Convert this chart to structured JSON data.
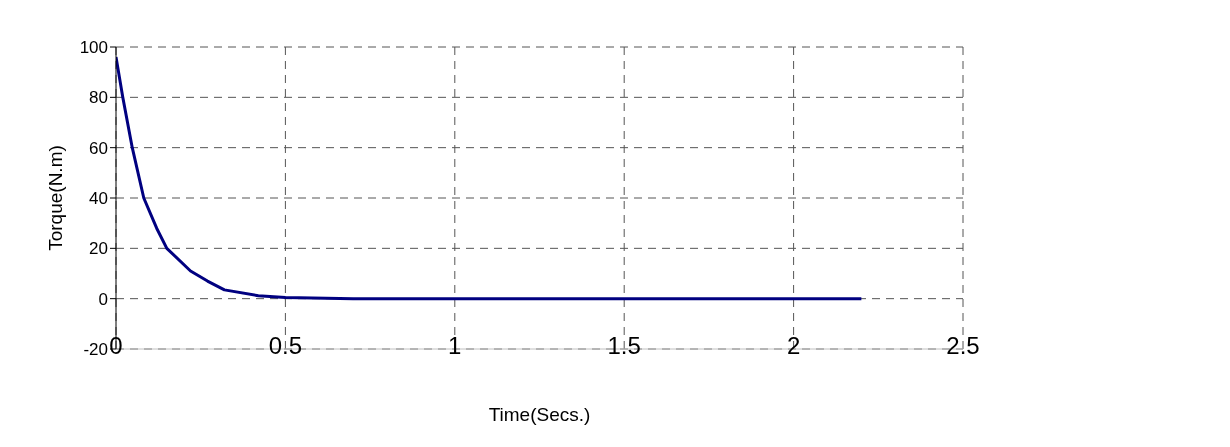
{
  "chart_data": {
    "type": "line",
    "xlabel": "Time(Secs.)",
    "ylabel": "Torque(N.m)",
    "series": [
      {
        "color": "#000080",
        "x": [
          0,
          0.02,
          0.048,
          0.082,
          0.12,
          0.15,
          0.22,
          0.27,
          0.32,
          0.42,
          0.5,
          0.7,
          1,
          1.5,
          2,
          2.2
        ],
        "values": [
          96,
          80,
          60,
          40,
          28,
          20,
          11,
          7,
          3.5,
          1.2,
          0.5,
          0,
          0,
          0,
          0,
          0
        ]
      }
    ],
    "xlim": [
      0,
      2.5
    ],
    "xticks": [
      0,
      0.5,
      1,
      1.5,
      2,
      2.5
    ],
    "ylim": [
      -20,
      100
    ],
    "yticks": [
      -20,
      0,
      20,
      40,
      60,
      80,
      100
    ],
    "grid": true,
    "line_style": "solid",
    "marker": "none"
  }
}
